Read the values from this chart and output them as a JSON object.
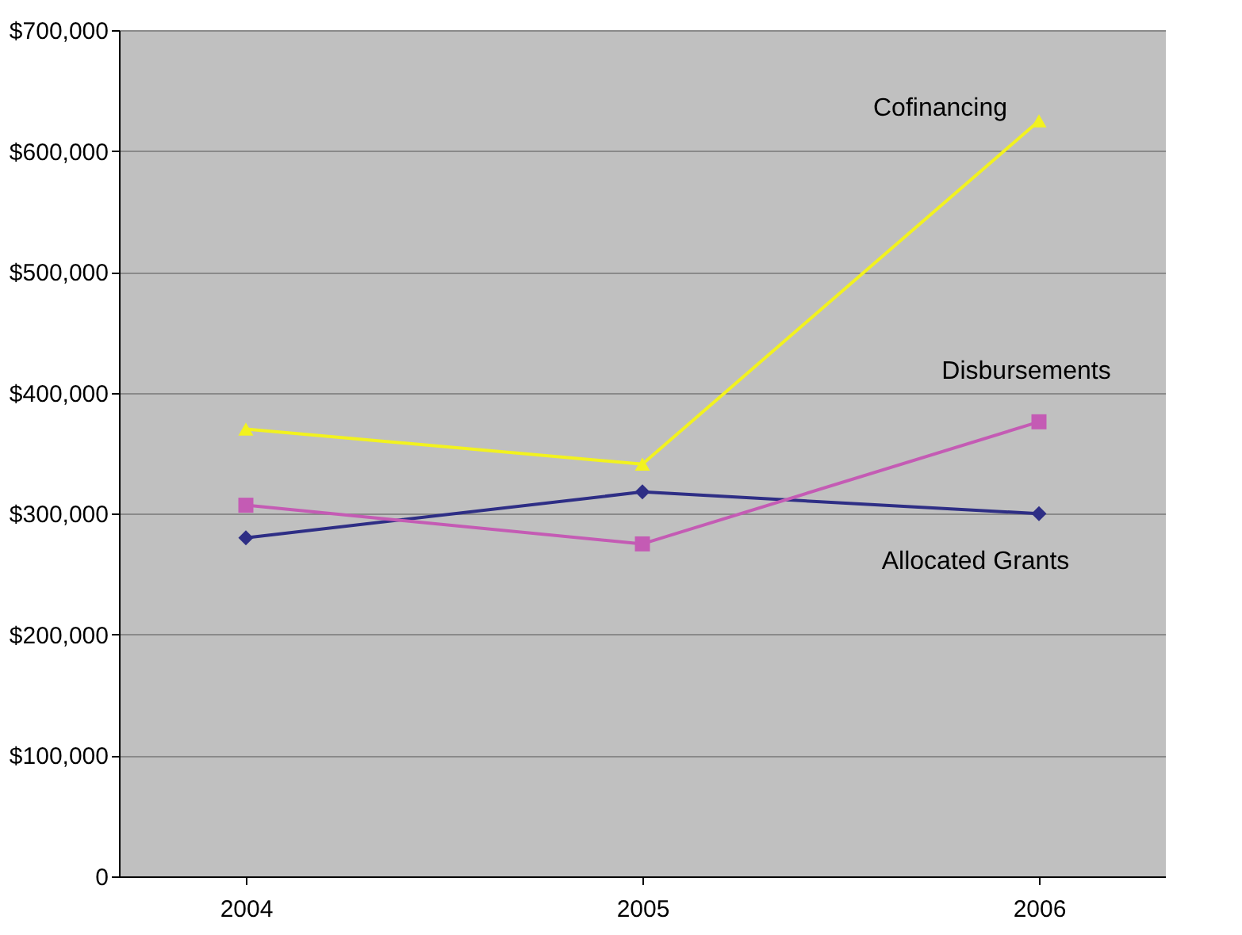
{
  "chart_data": {
    "type": "line",
    "categories": [
      "2004",
      "2005",
      "2006"
    ],
    "series": [
      {
        "name": "Allocated Grants",
        "color": "#2e2e85",
        "marker": "diamond",
        "values": [
          280000,
          318000,
          300000
        ]
      },
      {
        "name": "Disbursements",
        "color": "#c45bb4",
        "marker": "square",
        "values": [
          307000,
          275000,
          376000
        ]
      },
      {
        "name": "Cofinancing",
        "color": "#f2f21e",
        "marker": "triangle",
        "values": [
          370000,
          341000,
          625000
        ]
      }
    ],
    "ylim": [
      0,
      700000
    ],
    "yticks": [
      {
        "value": 0,
        "label": "0"
      },
      {
        "value": 100000,
        "label": "$100,000"
      },
      {
        "value": 200000,
        "label": "$200,000"
      },
      {
        "value": 300000,
        "label": "$300,000"
      },
      {
        "value": 400000,
        "label": "$400,000"
      },
      {
        "value": 500000,
        "label": "$500,000"
      },
      {
        "value": 600000,
        "label": "$600,000"
      },
      {
        "value": 700000,
        "label": "$700,000"
      }
    ],
    "grid": "y"
  }
}
